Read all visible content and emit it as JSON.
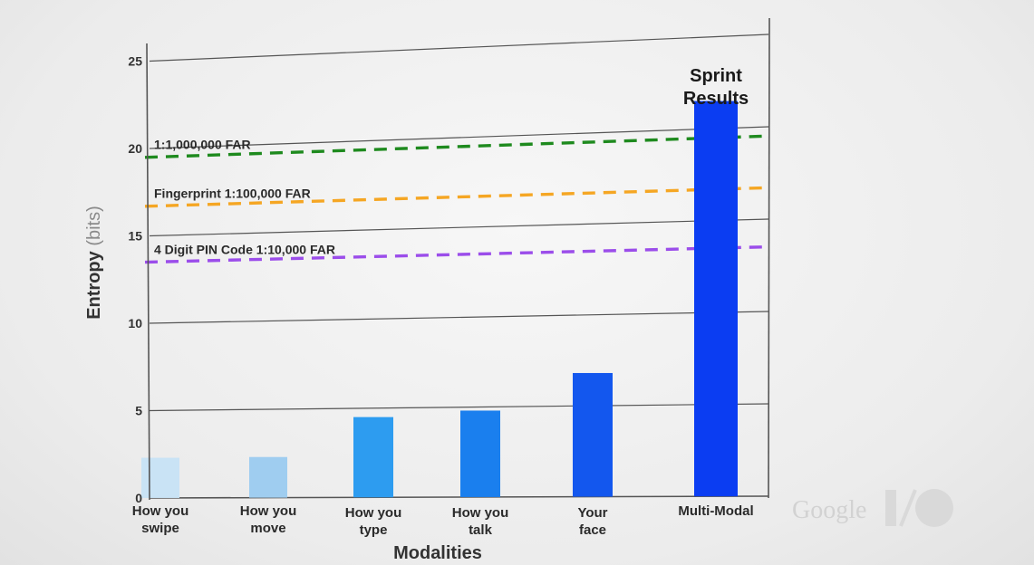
{
  "chart_data": {
    "type": "bar",
    "categories": [
      [
        "How you",
        "swipe"
      ],
      [
        "How you",
        "move"
      ],
      [
        "How you",
        "type"
      ],
      [
        "How you",
        "talk"
      ],
      [
        "Your",
        "face"
      ],
      [
        "Multi-Modal"
      ]
    ],
    "values": [
      2.3,
      2.3,
      4.5,
      4.8,
      6.8,
      21.5
    ],
    "bar_colors": [
      "#c9e3f5",
      "#9fcdf0",
      "#2d9cf0",
      "#1a7fee",
      "#1357ee",
      "#0b3df2"
    ],
    "xlabel": "Modalities",
    "ylabel": {
      "main": "Entropy",
      "unit": "(bits)"
    },
    "ylim": [
      0,
      25
    ],
    "yticks": [
      0,
      5,
      10,
      15,
      20,
      25
    ],
    "grid": true,
    "reference_lines": [
      {
        "label": "1:1,000,000 FAR",
        "value": 19.5,
        "color": "#1e8a1e"
      },
      {
        "label": "Fingerprint 1:100,000 FAR",
        "value": 16.7,
        "color": "#f5a623"
      },
      {
        "label": "4 Digit PIN Code 1:10,000 FAR",
        "value": 13.5,
        "color": "#9b4dea"
      }
    ],
    "annotation": {
      "lines": [
        "Sprint",
        "Results"
      ],
      "category_index": 5
    }
  },
  "watermark": {
    "text": "Google",
    "io_text": "I/O"
  }
}
